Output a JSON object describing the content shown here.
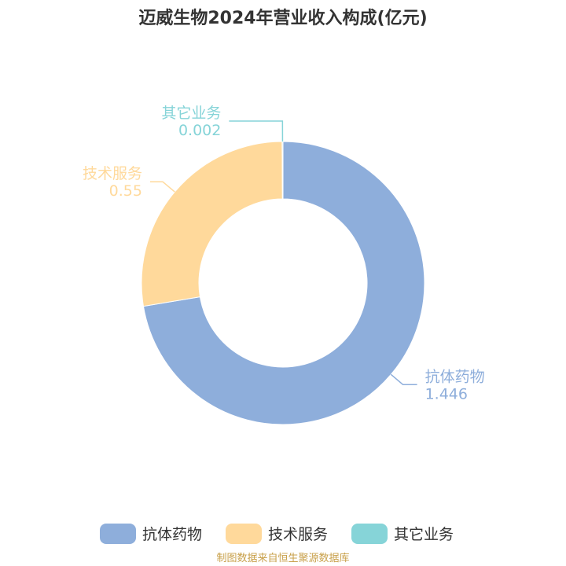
{
  "chart_data": {
    "type": "pie",
    "title": "迈威生物2024年营业收入构成(亿元)",
    "series": [
      {
        "name": "抗体药物",
        "value": 1.446,
        "label": "1.446",
        "color": "#8eaedb"
      },
      {
        "name": "技术服务",
        "value": 0.55,
        "label": "0.55",
        "color": "#ffd99b"
      },
      {
        "name": "其它业务",
        "value": 0.002,
        "label": "0.002",
        "color": "#86d4d8"
      }
    ],
    "legend_position": "bottom-center"
  },
  "source": {
    "text": "制图数据来自恒生聚源数据库",
    "color": "#c8a04a"
  }
}
